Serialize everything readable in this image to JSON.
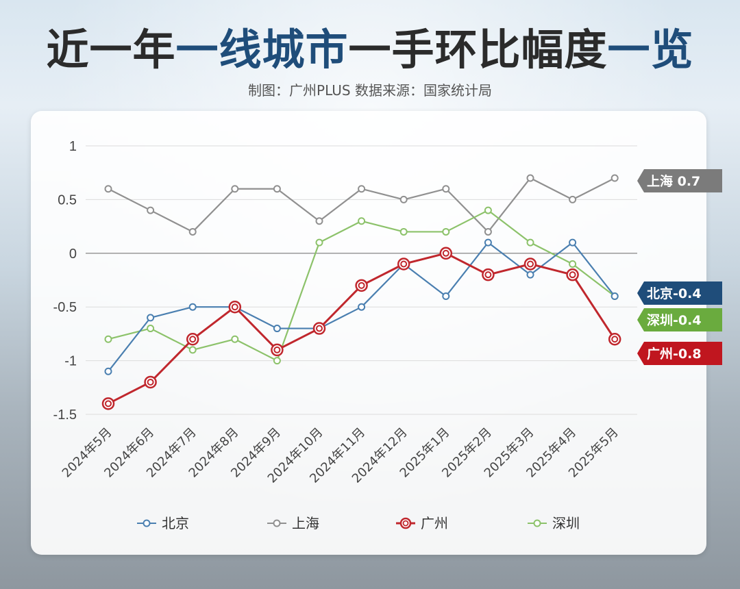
{
  "header": {
    "title_part1": "近一年",
    "title_part2": "一线城市",
    "title_part3": "一手环比幅度",
    "title_part4": "一览",
    "subtitle": "制图：广州PLUS   数据来源：国家统计局"
  },
  "colors": {
    "beijing": "#4a7fb0",
    "shanghai": "#909090",
    "guangzhou": "#c0272d",
    "shenzhen": "#8cc26a",
    "tag_beijing": "#1f4d7a",
    "tag_shanghai": "#7b7b7b",
    "tag_guangzhou": "#c0161f",
    "tag_shenzhen": "#6aab3e"
  },
  "chart_data": {
    "type": "line",
    "categories": [
      "2024年5月",
      "2024年6月",
      "2024年7月",
      "2024年8月",
      "2024年9月",
      "2024年10月",
      "2024年11月",
      "2024年12月",
      "2025年1月",
      "2025年2月",
      "2025年3月",
      "2025年4月",
      "2025年5月"
    ],
    "y_ticks": [
      "1",
      "0.5",
      "0",
      "-0.5",
      "-1",
      "-1.5"
    ],
    "ylim": [
      -1.5,
      1
    ],
    "legend_position": "bottom",
    "series": [
      {
        "key": "beijing",
        "name": "北京",
        "values": [
          -1.1,
          -0.6,
          -0.5,
          -0.5,
          -0.7,
          -0.7,
          -0.5,
          -0.1,
          -0.4,
          0.1,
          -0.2,
          0.1,
          -0.4
        ],
        "end_label": "北京-0.4"
      },
      {
        "key": "shanghai",
        "name": "上海",
        "values": [
          0.6,
          0.4,
          0.2,
          0.6,
          0.6,
          0.3,
          0.6,
          0.5,
          0.6,
          0.2,
          0.7,
          0.5,
          0.7
        ],
        "end_label": "上海 0.7"
      },
      {
        "key": "guangzhou",
        "name": "广州",
        "values": [
          -1.4,
          -1.2,
          -0.8,
          -0.5,
          -0.9,
          -0.7,
          -0.3,
          -0.1,
          0.0,
          -0.2,
          -0.1,
          -0.2,
          -0.8
        ],
        "end_label": "广州-0.8"
      },
      {
        "key": "shenzhen",
        "name": "深圳",
        "values": [
          -0.8,
          -0.7,
          -0.9,
          -0.8,
          -1.0,
          0.1,
          0.3,
          0.2,
          0.2,
          0.4,
          0.1,
          -0.1,
          -0.4
        ],
        "end_label": "深圳-0.4"
      }
    ]
  }
}
